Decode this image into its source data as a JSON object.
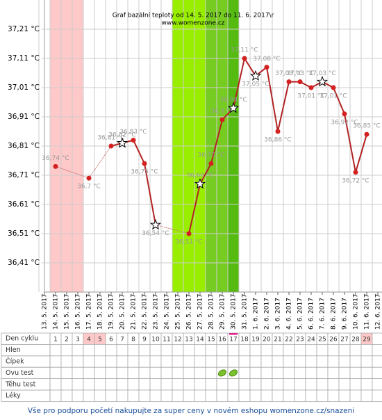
{
  "chart_data": {
    "type": "line",
    "title": "Graf bazální teploty od 14. 5. 2017 do 11. 6. 2017\\r",
    "subtitle": "www.womenzone.cz",
    "categories": [
      "13. 5. 2017",
      "14. 5. 2017",
      "15. 5. 2017",
      "16. 5. 2017",
      "17. 5. 2017",
      "18. 5. 2017",
      "19. 5. 2017",
      "20. 5. 2017",
      "21. 5. 2017",
      "22. 5. 2017",
      "23. 5. 2017",
      "24. 5. 2017",
      "25. 5. 2017",
      "26. 5. 2017",
      "27. 5. 2017",
      "28. 5. 2017",
      "29. 5. 2017",
      "30. 5. 2017",
      "31. 5. 2017",
      "1. 6. 2017",
      "2. 6. 2017",
      "3. 6. 2017",
      "4. 6. 2017",
      "5. 6. 2017",
      "6. 6. 2017",
      "7. 6. 2017",
      "8. 6. 2017",
      "9. 6. 2017",
      "10. 6. 2017",
      "11. 6. 2017",
      "12. 6. 2017"
    ],
    "values": [
      null,
      36.74,
      null,
      null,
      36.7,
      null,
      36.81,
      36.82,
      36.83,
      36.75,
      36.54,
      null,
      null,
      36.51,
      36.68,
      36.75,
      36.9,
      36.94,
      37.11,
      37.05,
      37.08,
      36.86,
      37.03,
      37.03,
      37.01,
      37.03,
      37.01,
      36.92,
      36.72,
      36.85,
      null
    ],
    "value_labels": [
      null,
      "36,74 °C",
      null,
      null,
      "36,7 °C",
      null,
      "36,81 °C",
      "36,82 °C",
      "36,83 °C",
      "36,75 °C",
      "36,54 °C",
      null,
      null,
      "36,51 °C",
      "36,68 °C",
      "36,75 °C",
      "36,9 °C",
      "36,94 °C",
      "37,11 °C",
      "37,05 °C",
      "37,08 °C",
      "36,86 °C",
      "37,03 °C",
      "37,03 °C",
      "37,01 °C",
      "37,03 °C",
      "37,01 °C",
      "36,92 °C",
      "36,72 °C",
      "36,85 °C",
      null
    ],
    "star_indices": [
      7,
      10,
      14,
      17,
      19,
      25
    ],
    "band_colors": [
      null,
      "#ffc9c9",
      "#ffc9c9",
      "#ffc9c9",
      null,
      null,
      null,
      null,
      null,
      null,
      null,
      null,
      "#99ee00",
      "#99ee00",
      "#99ee00",
      "#77cc22",
      "#77cc22",
      "#55bb11",
      null,
      null,
      null,
      null,
      null,
      null,
      null,
      null,
      null,
      null,
      null,
      null,
      null
    ],
    "color": "#b22222",
    "ylim": [
      36.31,
      37.31
    ],
    "yticks": [
      {
        "value": 36.41,
        "label": "36,41 °C"
      },
      {
        "value": 36.51,
        "label": "36,51 °C"
      },
      {
        "value": 36.61,
        "label": "36,61 °C"
      },
      {
        "value": 36.71,
        "label": "36,71 °C"
      },
      {
        "value": 36.81,
        "label": "36,81 °C"
      },
      {
        "value": 36.91,
        "label": "36,91 °C"
      },
      {
        "value": 37.01,
        "label": "37,01 °C"
      },
      {
        "value": 37.11,
        "label": "37,11 °C"
      },
      {
        "value": 37.21,
        "label": "37,21 °C"
      }
    ],
    "grid": true
  },
  "cycle_table": {
    "row_labels": [
      "Den cyklu",
      "Hlen",
      "Čípek",
      "Ovu test",
      "Těhu test",
      "Léky"
    ],
    "days": [
      1,
      2,
      3,
      4,
      5,
      6,
      7,
      8,
      9,
      10,
      11,
      12,
      13,
      14,
      15,
      16,
      17,
      18,
      19,
      20,
      21,
      22,
      23,
      24,
      25,
      26,
      27,
      28,
      29
    ],
    "pink_days": [
      4,
      5,
      29
    ],
    "today_day": 17,
    "ovu_test_days": [
      16,
      17
    ]
  },
  "footer": "Vše pro podporu početí nakupujte za super ceny v novém eshopu womenzone.cz/snazeni"
}
